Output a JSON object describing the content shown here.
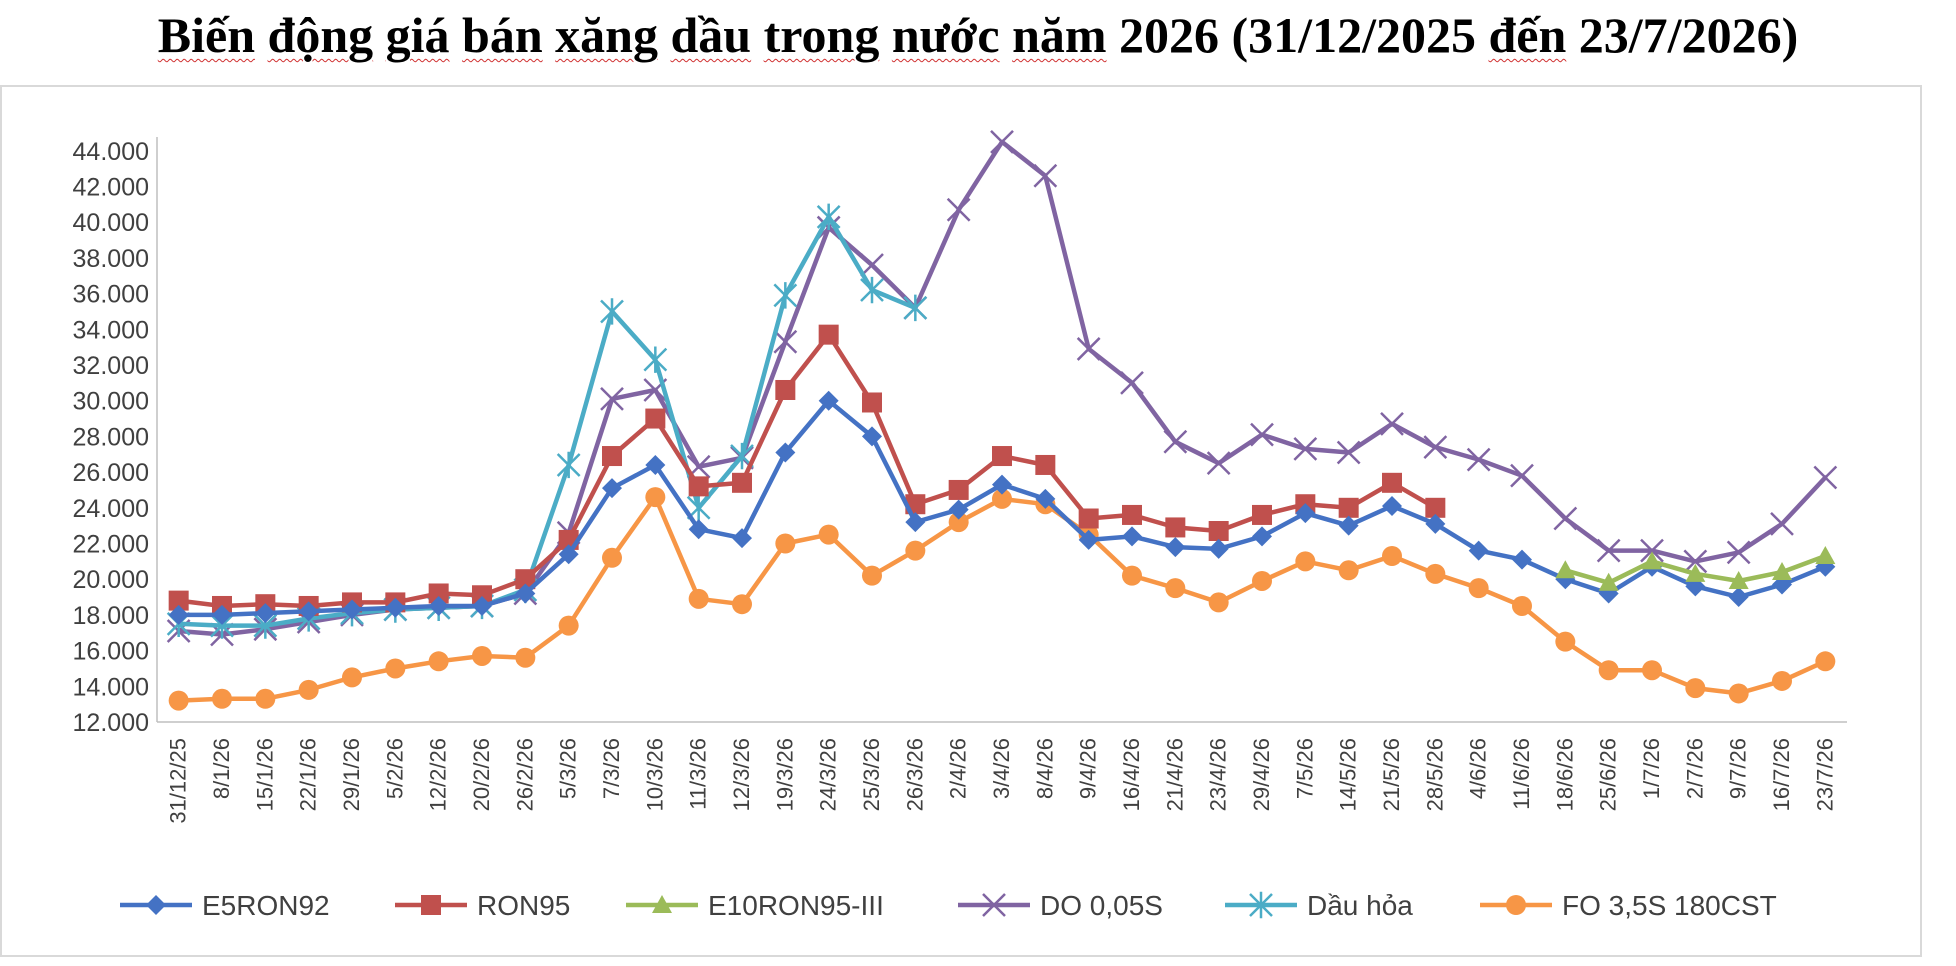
{
  "chart_data": {
    "type": "line",
    "title": "Biến động giá bán xăng dầu trong nước năm 2026 (31/12/2025 đến 23/7/2026)",
    "xlabel": "",
    "ylabel": "",
    "ylim": [
      12000,
      45000
    ],
    "yticks": [
      12000,
      14000,
      16000,
      18000,
      20000,
      22000,
      24000,
      26000,
      28000,
      30000,
      32000,
      34000,
      36000,
      38000,
      40000,
      42000,
      44000
    ],
    "ytick_labels": [
      "12.000",
      "14.000",
      "16.000",
      "18.000",
      "20.000",
      "22.000",
      "24.000",
      "26.000",
      "28.000",
      "30.000",
      "32.000",
      "34.000",
      "36.000",
      "38.000",
      "40.000",
      "42.000",
      "44.000"
    ],
    "grid": false,
    "legend_position": "bottom",
    "categories": [
      "31/12/25",
      "8/1/26",
      "15/1/26",
      "22/1/26",
      "29/1/26",
      "5/2/26",
      "12/2/26",
      "20/2/26",
      "26/2/26",
      "5/3/26",
      "7/3/26",
      "10/3/26",
      "11/3/26",
      "12/3/26",
      "19/3/26",
      "24/3/26",
      "25/3/26",
      "26/3/26",
      "2/4/26",
      "3/4/26",
      "8/4/26",
      "9/4/26",
      "16/4/26",
      "21/4/26",
      "23/4/26",
      "29/4/26",
      "7/5/26",
      "14/5/26",
      "21/5/26",
      "28/5/26",
      "4/6/26",
      "11/6/26",
      "18/6/26",
      "25/6/26",
      "1/7/26",
      "2/7/26",
      "9/7/26",
      "16/7/26",
      "23/7/26"
    ],
    "series": [
      {
        "name": "E5RON92",
        "color": "#4472c4",
        "marker": "diamond",
        "values": [
          18000,
          18000,
          18100,
          18200,
          18300,
          18400,
          18500,
          18500,
          19200,
          21400,
          25100,
          26400,
          22800,
          22300,
          27100,
          30000,
          28000,
          23200,
          23900,
          25300,
          24500,
          22200,
          22400,
          21800,
          21700,
          22400,
          23700,
          23000,
          24100,
          23100,
          21600,
          21100,
          20000,
          19200,
          20700,
          19600,
          19000,
          19700,
          20700
        ]
      },
      {
        "name": "RON95",
        "color": "#c0504d",
        "marker": "square",
        "values": [
          18800,
          18500,
          18600,
          18500,
          18700,
          18700,
          19200,
          19100,
          20000,
          22200,
          26900,
          29000,
          25200,
          25400,
          30600,
          33700,
          29900,
          24200,
          25000,
          26900,
          26400,
          23400,
          23600,
          22900,
          22700,
          23600,
          24200,
          24000,
          25400,
          24000,
          null,
          null,
          null,
          null,
          null,
          null,
          null,
          null,
          null
        ]
      },
      {
        "name": "E10RON95-III",
        "color": "#9bbb59",
        "marker": "triangle",
        "values": [
          null,
          null,
          null,
          null,
          null,
          null,
          null,
          null,
          null,
          null,
          null,
          null,
          null,
          null,
          null,
          null,
          null,
          null,
          null,
          null,
          null,
          null,
          null,
          null,
          null,
          null,
          null,
          null,
          null,
          null,
          null,
          null,
          20500,
          19800,
          21000,
          20300,
          19900,
          20400,
          21300
        ]
      },
      {
        "name": "DO 0,05S",
        "color": "#8064a2",
        "marker": "x",
        "values": [
          17100,
          16900,
          17200,
          17600,
          18000,
          18300,
          18400,
          18500,
          19200,
          22600,
          30100,
          30600,
          26300,
          26800,
          33300,
          39700,
          37600,
          35200,
          40700,
          44500,
          42600,
          32900,
          31000,
          27700,
          26500,
          28100,
          27300,
          27100,
          28700,
          27400,
          26700,
          25800,
          23400,
          21600,
          21600,
          21000,
          21500,
          23100,
          25700
        ]
      },
      {
        "name": "Dầu hỏa",
        "color": "#4bacc6",
        "marker": "star",
        "values": [
          17500,
          17400,
          17400,
          17800,
          18100,
          18300,
          18400,
          18500,
          19400,
          26400,
          35000,
          32300,
          24000,
          26900,
          35900,
          40300,
          36200,
          35200,
          null,
          null,
          null,
          null,
          null,
          null,
          null,
          null,
          null,
          null,
          null,
          null,
          null,
          null,
          null,
          null,
          null,
          null,
          null,
          null,
          null
        ]
      },
      {
        "name": "FO 3,5S 180CST",
        "color": "#f79646",
        "marker": "circle",
        "values": [
          13200,
          13300,
          13300,
          13800,
          14500,
          15000,
          15400,
          15700,
          15600,
          17400,
          21200,
          24600,
          18900,
          18600,
          22000,
          22500,
          20200,
          21600,
          23200,
          24500,
          24200,
          22500,
          20200,
          19500,
          18700,
          19900,
          21000,
          20500,
          21300,
          20300,
          19500,
          18500,
          16500,
          14900,
          14900,
          13900,
          13600,
          14300,
          15400
        ]
      }
    ]
  }
}
